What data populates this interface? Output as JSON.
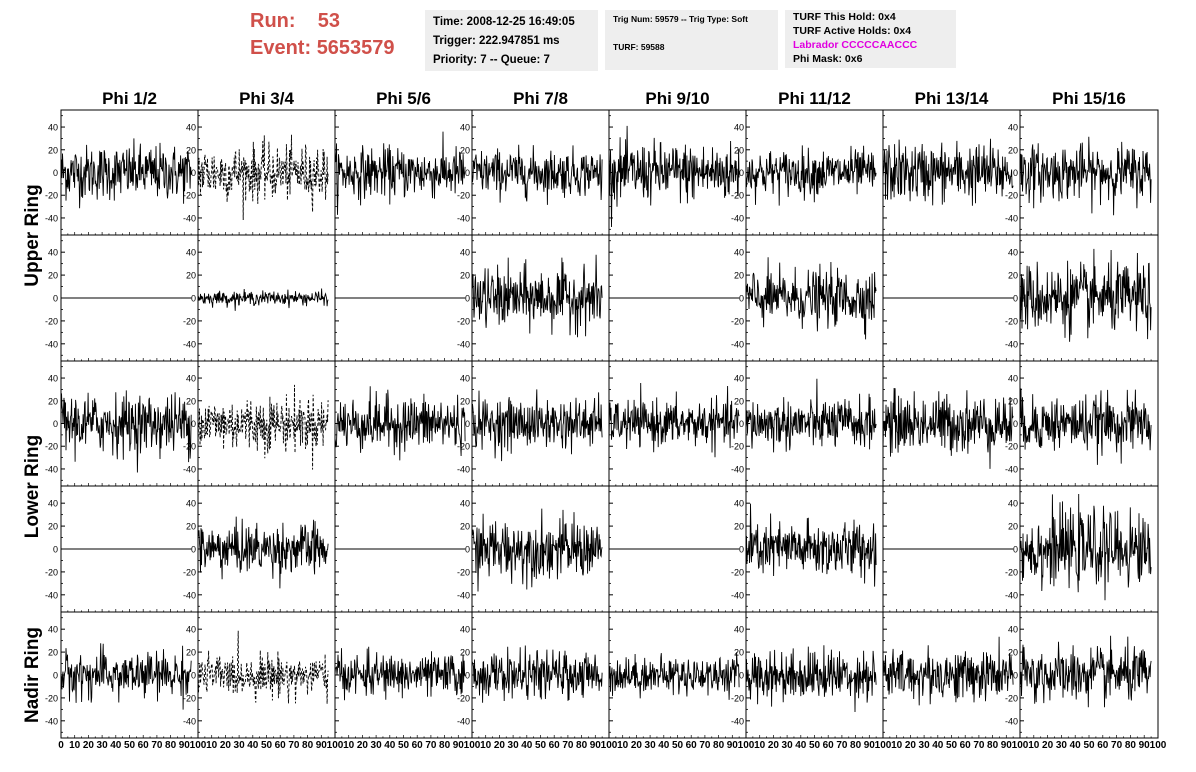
{
  "header": {
    "run_label": "Run:",
    "run_value": "53",
    "event_label": "Event:",
    "event_value": "5653579",
    "time": "Time: 2008-12-25 16:49:05",
    "trigger": "Trigger: 222.947851 ms",
    "priority": "Priority: 7 -- Queue: 7",
    "trig_num": "Trig Num: 59579 -- Trig Type: Soft",
    "turf": "TURF: 59588",
    "turf_this_hold": "TURF This Hold: 0x4",
    "turf_active_holds": "TURF Active Holds: 0x4",
    "labrador": "Labrador CCCCCAACCC",
    "phi_mask": "Phi Mask: 0x6",
    "colors": {
      "run": "#d0504a",
      "labrador": "#e000e0",
      "info_bg": "#eeeeee"
    }
  },
  "chart_data": {
    "type": "line",
    "columns": [
      "Phi 1/2",
      "Phi 3/4",
      "Phi 5/6",
      "Phi 7/8",
      "Phi 9/10",
      "Phi 11/12",
      "Phi 13/14",
      "Phi 15/16"
    ],
    "row_groups": [
      "Upper Ring",
      "Lower Ring",
      "Nadir Ring"
    ],
    "rows": 5,
    "xlim": [
      0,
      100
    ],
    "ylim": [
      -55,
      55
    ],
    "y_ticks": [
      -40,
      -20,
      0,
      20,
      40
    ],
    "x_ticks": [
      0,
      10,
      20,
      30,
      40,
      50,
      60,
      70,
      80,
      90,
      100
    ],
    "x_tick_labels": [
      "0",
      "10",
      "20",
      "30",
      "40",
      "50",
      "60",
      "70",
      "80",
      "90",
      "100"
    ],
    "waveform_samples": 260,
    "waveform_x_range": [
      0,
      95
    ],
    "panels_amplitude": [
      [
        12,
        12,
        11,
        10,
        13,
        10,
        13,
        12
      ],
      [
        0,
        3,
        0,
        13,
        0,
        12,
        0,
        15
      ],
      [
        13,
        12,
        12,
        11,
        10,
        11,
        13,
        12
      ],
      [
        0,
        11,
        0,
        13,
        0,
        12,
        0,
        16
      ],
      [
        10,
        9,
        9,
        10,
        8,
        11,
        11,
        12
      ]
    ],
    "dashed_panels": [
      [
        0,
        1
      ],
      [
        2,
        1
      ],
      [
        4,
        1
      ]
    ]
  }
}
